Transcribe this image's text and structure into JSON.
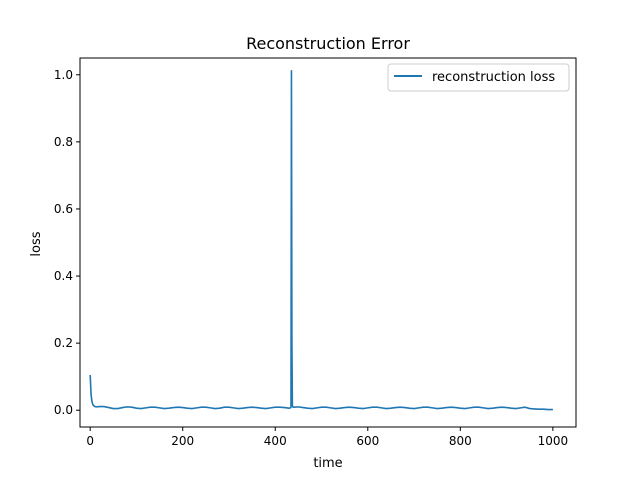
{
  "chart_data": {
    "type": "line",
    "title": "Reconstruction Error",
    "xlabel": "time",
    "ylabel": "loss",
    "xlim": [
      -22,
      1050
    ],
    "ylim": [
      -0.05,
      1.05
    ],
    "xticks": [
      0,
      200,
      400,
      600,
      800,
      1000
    ],
    "yticks": [
      0.0,
      0.2,
      0.4,
      0.6,
      0.8,
      1.0
    ],
    "xtick_labels": [
      "0",
      "200",
      "400",
      "600",
      "800",
      "1000"
    ],
    "ytick_labels": [
      "0.0",
      "0.2",
      "0.4",
      "0.6",
      "0.8",
      "1.0"
    ],
    "legend_position": "top-right",
    "grid": false,
    "series": [
      {
        "name": "reconstruction loss",
        "color": "#1f77b4",
        "x": [
          0,
          2,
          4,
          6,
          10,
          15,
          20,
          30,
          40,
          50,
          60,
          70,
          80,
          90,
          100,
          110,
          120,
          130,
          140,
          150,
          160,
          170,
          180,
          190,
          200,
          210,
          220,
          230,
          240,
          250,
          260,
          270,
          280,
          290,
          300,
          310,
          320,
          330,
          340,
          350,
          360,
          370,
          380,
          390,
          400,
          410,
          420,
          430,
          434,
          435,
          436,
          437,
          438,
          440,
          450,
          460,
          470,
          480,
          490,
          500,
          510,
          520,
          530,
          540,
          550,
          560,
          570,
          580,
          590,
          600,
          610,
          620,
          630,
          640,
          650,
          660,
          670,
          680,
          690,
          700,
          710,
          720,
          730,
          740,
          750,
          760,
          770,
          780,
          790,
          800,
          810,
          820,
          830,
          840,
          850,
          860,
          870,
          880,
          890,
          900,
          910,
          920,
          930,
          940,
          950,
          960,
          970,
          980,
          990,
          1000
        ],
        "y": [
          0.105,
          0.045,
          0.025,
          0.016,
          0.011,
          0.01,
          0.011,
          0.011,
          0.008,
          0.005,
          0.005,
          0.008,
          0.01,
          0.009,
          0.006,
          0.005,
          0.007,
          0.009,
          0.009,
          0.007,
          0.005,
          0.006,
          0.008,
          0.009,
          0.008,
          0.006,
          0.005,
          0.007,
          0.009,
          0.009,
          0.007,
          0.005,
          0.006,
          0.009,
          0.009,
          0.007,
          0.005,
          0.006,
          0.008,
          0.009,
          0.008,
          0.006,
          0.005,
          0.007,
          0.009,
          0.009,
          0.008,
          0.006,
          0.008,
          1.012,
          0.2,
          0.015,
          0.01,
          0.009,
          0.01,
          0.008,
          0.006,
          0.005,
          0.007,
          0.009,
          0.009,
          0.007,
          0.005,
          0.006,
          0.008,
          0.009,
          0.008,
          0.006,
          0.005,
          0.007,
          0.009,
          0.009,
          0.007,
          0.005,
          0.006,
          0.008,
          0.009,
          0.008,
          0.006,
          0.005,
          0.007,
          0.009,
          0.009,
          0.007,
          0.005,
          0.006,
          0.008,
          0.009,
          0.008,
          0.006,
          0.005,
          0.007,
          0.009,
          0.009,
          0.007,
          0.005,
          0.006,
          0.008,
          0.009,
          0.008,
          0.006,
          0.005,
          0.007,
          0.009,
          0.005,
          0.004,
          0.003,
          0.003,
          0.002,
          0.002
        ]
      }
    ]
  }
}
